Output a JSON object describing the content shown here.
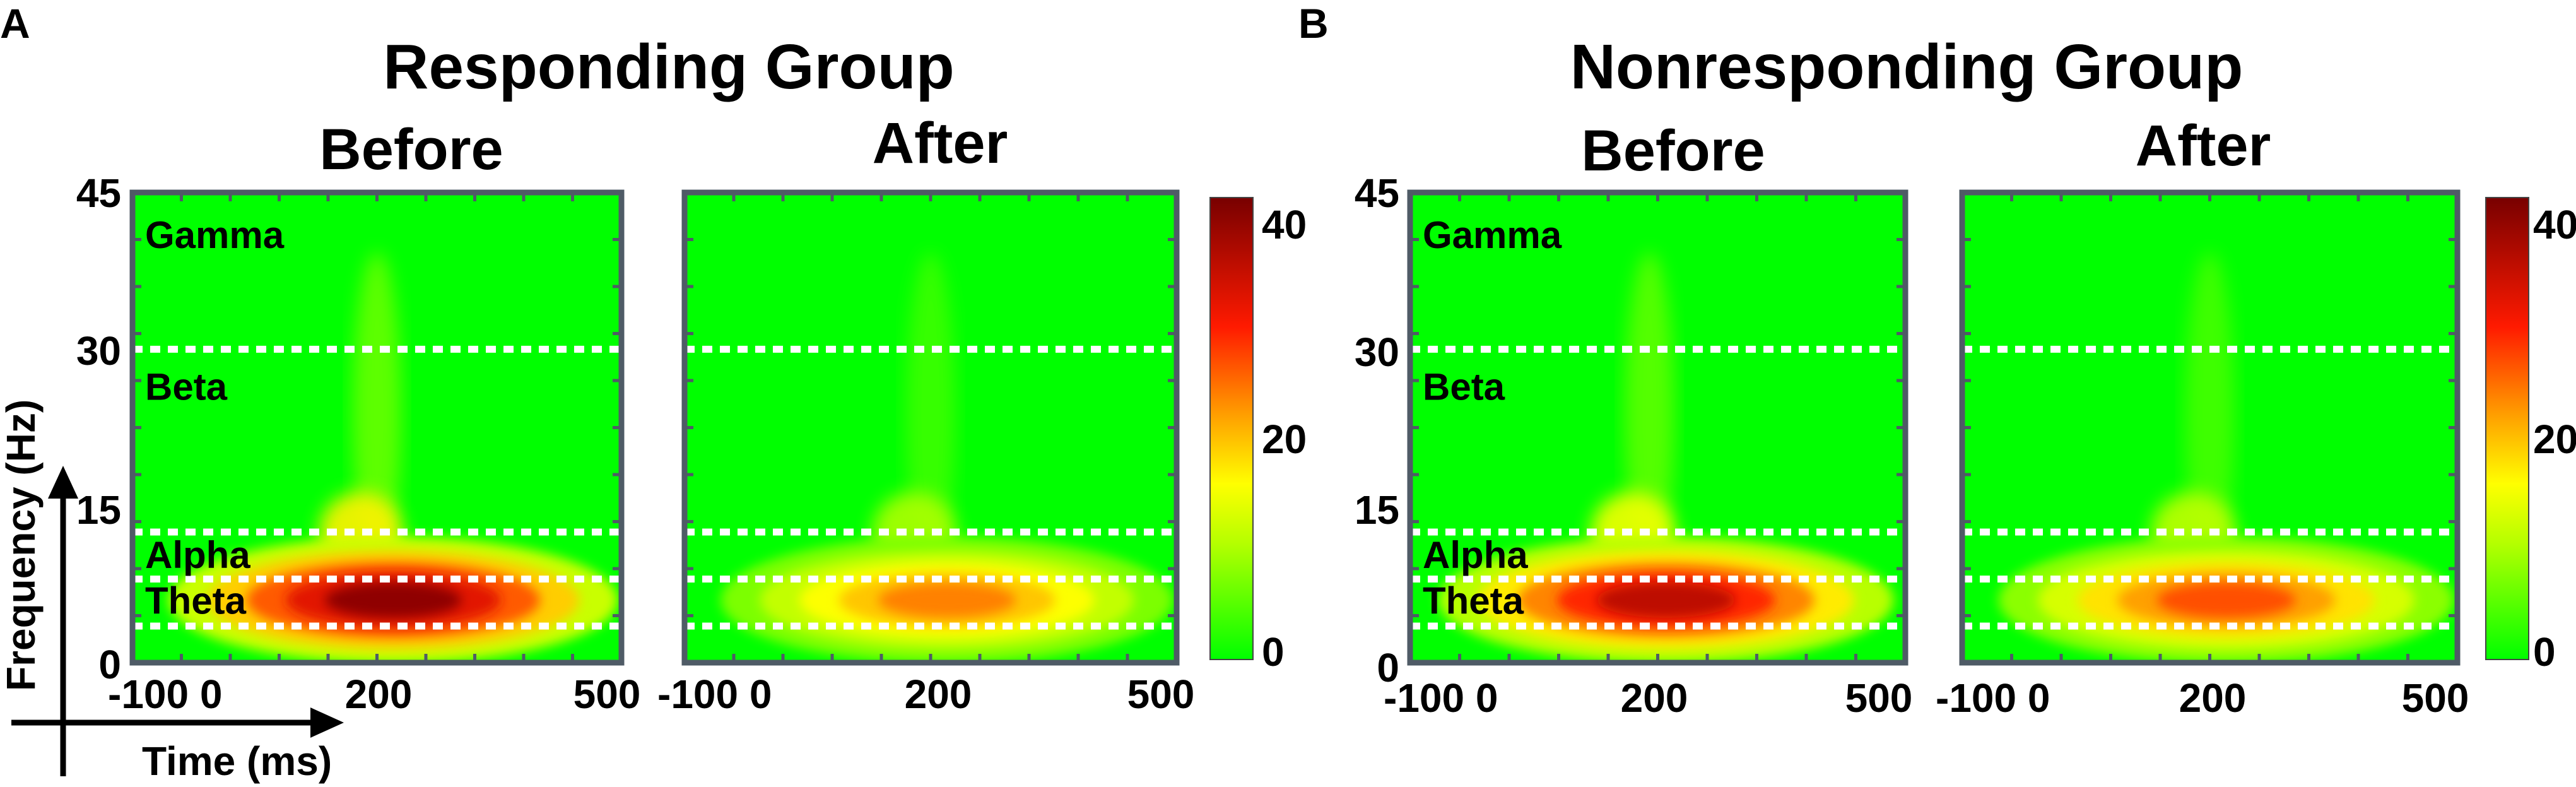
{
  "figure": {
    "panel_letters": [
      "A",
      "B"
    ]
  },
  "chart_data": [
    {
      "type": "heatmap",
      "group": "Responding Group",
      "condition": "Before",
      "panel": "A",
      "x_label": "Time (ms)",
      "y_label": "Frequency (Hz)",
      "x_ticks": [
        "-100 0",
        "200",
        "500"
      ],
      "y_ticks": [
        "0",
        "15",
        "30",
        "45"
      ],
      "xlim": [
        -100,
        500
      ],
      "ylim": [
        0,
        45
      ],
      "bands": [
        {
          "name": "Gamma",
          "lower_hz": 30,
          "upper_hz": 45
        },
        {
          "name": "Beta",
          "lower_hz": 12.5,
          "upper_hz": 30
        },
        {
          "name": "Alpha",
          "lower_hz": 8,
          "upper_hz": 12.5
        },
        {
          "name": "Theta",
          "lower_hz": 3.5,
          "upper_hz": 8
        }
      ],
      "band_boundaries_hz": [
        30,
        12.5,
        8,
        3.5
      ],
      "colorbar": {
        "ticks": [
          "0",
          "20",
          "40"
        ],
        "range": [
          0,
          42
        ]
      },
      "peak": {
        "time_ms": 220,
        "freq_hz": 6,
        "value": 40
      }
    },
    {
      "type": "heatmap",
      "group": "Responding Group",
      "condition": "After",
      "panel": "A",
      "x_ticks": [
        "-100 0",
        "200",
        "500"
      ],
      "xlim": [
        -100,
        500
      ],
      "ylim": [
        0,
        45
      ],
      "band_boundaries_hz": [
        30,
        12.5,
        8,
        3.5
      ],
      "peak": {
        "time_ms": 220,
        "freq_hz": 6,
        "value": 24
      }
    },
    {
      "type": "heatmap",
      "group": "Nonresponding Group",
      "condition": "Before",
      "panel": "B",
      "x_ticks": [
        "-100 0",
        "200",
        "500"
      ],
      "y_ticks": [
        "0",
        "15",
        "30",
        "45"
      ],
      "xlim": [
        -100,
        500
      ],
      "ylim": [
        0,
        45
      ],
      "bands": [
        {
          "name": "Gamma",
          "lower_hz": 30,
          "upper_hz": 45
        },
        {
          "name": "Beta",
          "lower_hz": 12.5,
          "upper_hz": 30
        },
        {
          "name": "Alpha",
          "lower_hz": 8,
          "upper_hz": 12.5
        },
        {
          "name": "Theta",
          "lower_hz": 3.5,
          "upper_hz": 8
        }
      ],
      "band_boundaries_hz": [
        30,
        12.5,
        8,
        3.5
      ],
      "colorbar": {
        "ticks": [
          "0",
          "20",
          "40"
        ],
        "range": [
          0,
          42
        ]
      },
      "peak": {
        "time_ms": 210,
        "freq_hz": 6,
        "value": 36
      }
    },
    {
      "type": "heatmap",
      "group": "Nonresponding Group",
      "condition": "After",
      "panel": "B",
      "x_ticks": [
        "-100 0",
        "200",
        "500"
      ],
      "xlim": [
        -100,
        500
      ],
      "ylim": [
        0,
        45
      ],
      "band_boundaries_hz": [
        30,
        12.5,
        8,
        3.5
      ],
      "peak": {
        "time_ms": 220,
        "freq_hz": 6,
        "value": 27
      }
    }
  ]
}
